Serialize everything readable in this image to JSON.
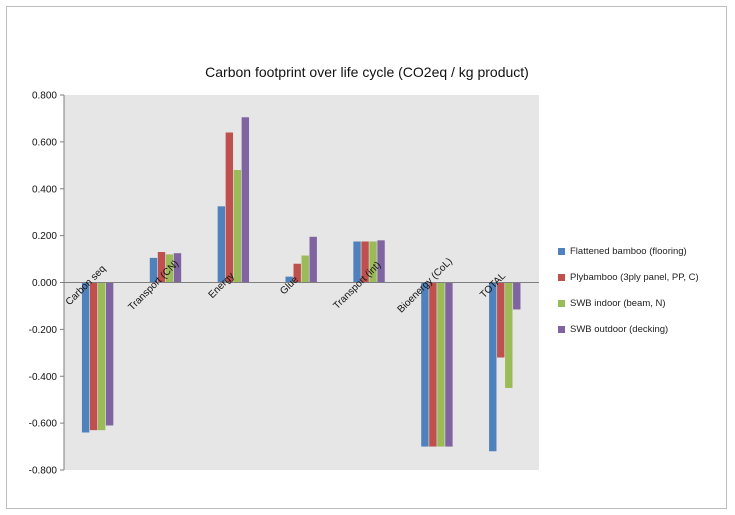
{
  "chart_data": {
    "type": "bar",
    "title": "Carbon footprint over life cycle (CO2eq / kg product)",
    "xlabel": "",
    "ylabel": "",
    "categories": [
      "Carbon seq",
      "Transport (CN)",
      "Energy",
      "Glue",
      "Transport (int)",
      "Bioenergy (CoL)",
      "TOTAL"
    ],
    "series": [
      {
        "name": "Flattened bamboo (flooring)",
        "color": "#4f81bd",
        "values": [
          -0.64,
          0.105,
          0.325,
          0.025,
          0.175,
          -0.7,
          -0.72
        ]
      },
      {
        "name": "Plybamboo (3ply panel, PP, C)",
        "color": "#c0504d",
        "values": [
          -0.63,
          0.13,
          0.64,
          0.08,
          0.175,
          -0.7,
          -0.32
        ]
      },
      {
        "name": "SWB indoor (beam, N)",
        "color": "#9bbb59",
        "values": [
          -0.63,
          0.12,
          0.48,
          0.115,
          0.175,
          -0.7,
          -0.45
        ]
      },
      {
        "name": "SWB outdoor (decking)",
        "color": "#8064a2",
        "values": [
          -0.61,
          0.125,
          0.705,
          0.195,
          0.18,
          -0.7,
          -0.115
        ]
      }
    ],
    "ylim": [
      -0.8,
      0.8
    ],
    "yticks": [
      "0.800",
      "0.600",
      "0.400",
      "0.200",
      "0.000",
      "-0.200",
      "-0.400",
      "-0.600",
      "-0.800"
    ],
    "grid": false,
    "legend_position": "right"
  }
}
